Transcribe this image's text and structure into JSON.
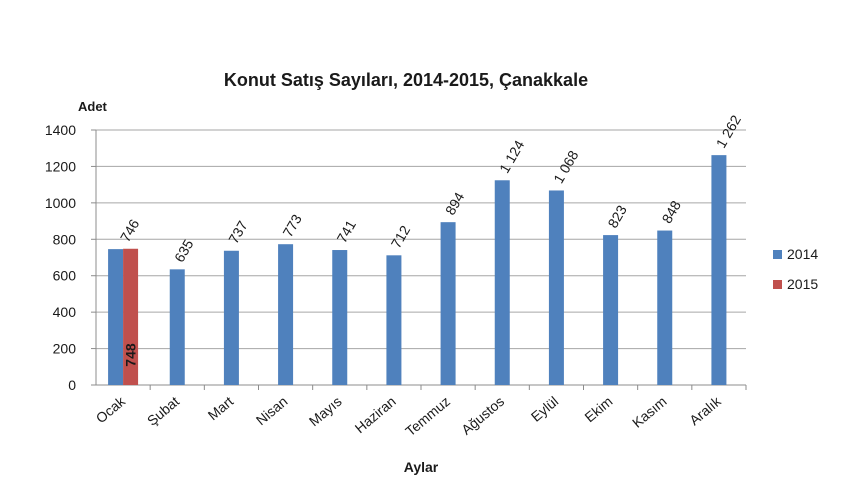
{
  "chart_data": {
    "type": "bar",
    "title": "Konut Satış Sayıları, 2014-2015, Çanakkale",
    "xlabel": "Aylar",
    "ylabel": "Adet",
    "ylim": [
      0,
      1400
    ],
    "yticks": [
      0,
      200,
      400,
      600,
      800,
      1000,
      1200,
      1400
    ],
    "grid": true,
    "legend_position": "right",
    "categories": [
      "Ocak",
      "Şubat",
      "Mart",
      "Nisan",
      "Mayıs",
      "Haziran",
      "Temmuz",
      "Ağustos",
      "Eylül",
      "Ekim",
      "Kasım",
      "Aralık"
    ],
    "series": [
      {
        "name": "2014",
        "color": "#4f81bd",
        "values": [
          746,
          635,
          737,
          773,
          741,
          712,
          894,
          1124,
          1068,
          823,
          848,
          1262
        ],
        "labels": [
          "746",
          "635",
          "737",
          "773",
          "741",
          "712",
          "894",
          "1 124",
          "1 068",
          "823",
          "848",
          "1 262"
        ]
      },
      {
        "name": "2015",
        "color": "#c0504d",
        "values": [
          748,
          null,
          null,
          null,
          null,
          null,
          null,
          null,
          null,
          null,
          null,
          null
        ],
        "labels": [
          "748",
          "",
          "",
          "",
          "",
          "",
          "",
          "",
          "",
          "",
          "",
          ""
        ]
      }
    ]
  }
}
